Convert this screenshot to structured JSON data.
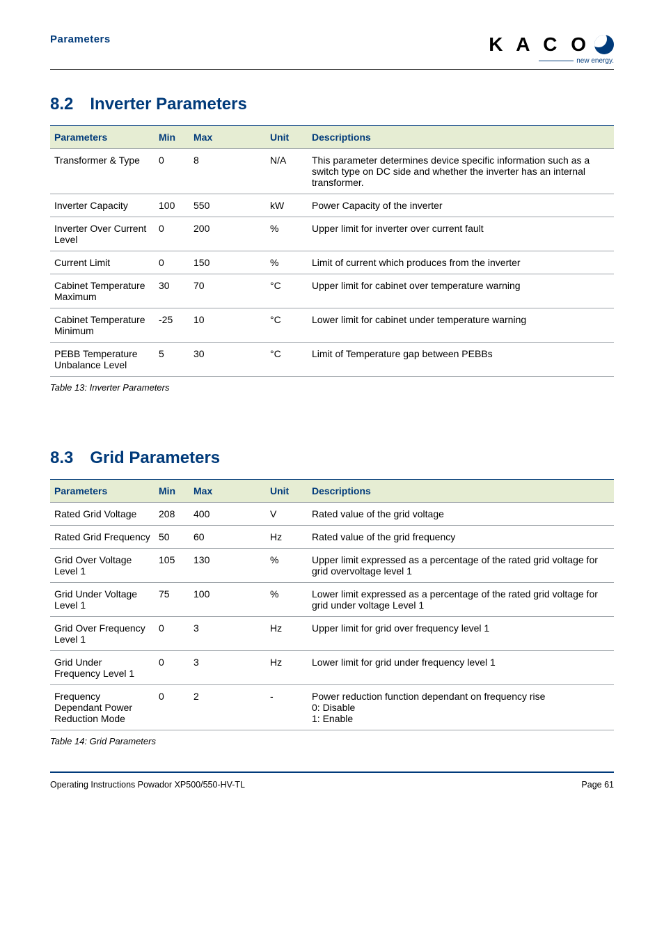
{
  "header": {
    "section_label": "Parameters",
    "logo_text": "K A C O",
    "logo_tagline": "new energy."
  },
  "section1": {
    "number": "8.2",
    "title": "Inverter Parameters",
    "columns": [
      "Parameters",
      "Min",
      "Max",
      "Unit",
      "Descriptions"
    ],
    "rows": [
      [
        "Transformer & Type",
        "0",
        "8",
        "N/A",
        "This parameter determines device specific information such as a switch type on DC side and whether the inverter has an internal transformer."
      ],
      [
        "Inverter Capacity",
        "100",
        "550",
        "kW",
        "Power Capacity of the inverter"
      ],
      [
        "Inverter Over Current Level",
        "0",
        "200",
        "%",
        "Upper limit for inverter over current fault"
      ],
      [
        "Current Limit",
        "0",
        "150",
        "%",
        "Limit of current which produces from the inverter"
      ],
      [
        "Cabinet Temperature Maximum",
        "30",
        "70",
        "°C",
        "Upper limit for cabinet over temperature warning"
      ],
      [
        "Cabinet Temperature Minimum",
        "-25",
        "10",
        "°C",
        "Lower limit for cabinet under temperature warning"
      ],
      [
        "PEBB Temperature Unbalance Level",
        "5",
        "30",
        "°C",
        "Limit of Temperature gap between PEBBs"
      ]
    ],
    "caption": "Table 13:  Inverter Parameters"
  },
  "section2": {
    "number": "8.3",
    "title": "Grid Parameters",
    "columns": [
      "Parameters",
      "Min",
      "Max",
      "Unit",
      "Descriptions"
    ],
    "rows": [
      [
        "Rated Grid Voltage",
        "208",
        "400",
        "V",
        "Rated value of the grid voltage"
      ],
      [
        "Rated Grid Frequency",
        "50",
        "60",
        "Hz",
        "Rated value of the grid frequency"
      ],
      [
        "Grid Over Voltage Level 1",
        "105",
        "130",
        "%",
        "Upper limit expressed as a percentage of the rated grid voltage for grid overvoltage level 1"
      ],
      [
        "Grid Under Voltage Level 1",
        "75",
        "100",
        "%",
        "Lower limit expressed as a percentage of the rated grid voltage for grid under voltage Level 1"
      ],
      [
        "Grid Over Frequency Level 1",
        "0",
        "3",
        "Hz",
        "Upper limit for grid over frequency level 1"
      ],
      [
        "Grid Under Frequency Level 1",
        "0",
        "3",
        "Hz",
        "Lower limit for grid under frequency level 1"
      ],
      [
        "Frequency Dependant Power Reduction Mode",
        "0",
        "2",
        "-",
        "Power reduction function dependant on frequency rise\n0: Disable\n1: Enable"
      ]
    ],
    "caption": "Table 14:  Grid Parameters"
  },
  "footer": {
    "left": "Operating Instructions Powador XP500/550-HV-TL",
    "right": "Page 61"
  }
}
